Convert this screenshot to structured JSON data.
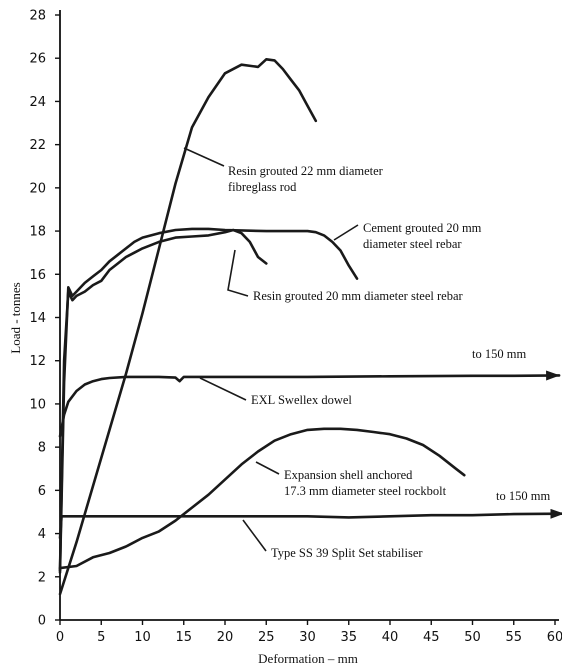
{
  "chart_data": {
    "type": "line",
    "xlabel": "Deformation – mm",
    "ylabel": "Load - tonnes",
    "xlim": [
      0,
      60
    ],
    "ylim": [
      0,
      28
    ],
    "xticks": [
      0,
      5,
      10,
      15,
      20,
      25,
      30,
      35,
      40,
      45,
      50,
      55,
      60
    ],
    "yticks": [
      0,
      2,
      4,
      6,
      8,
      10,
      12,
      14,
      16,
      18,
      20,
      22,
      24,
      26,
      28
    ],
    "grid": false,
    "series": [
      {
        "name": "Resin grouted 22 mm diameter fibreglass rod",
        "points": [
          [
            0,
            1.2
          ],
          [
            2,
            3.6
          ],
          [
            4,
            6.2
          ],
          [
            6,
            8.8
          ],
          [
            8,
            11.4
          ],
          [
            10,
            14.2
          ],
          [
            12,
            17.2
          ],
          [
            14,
            20.2
          ],
          [
            16,
            22.8
          ],
          [
            18,
            24.2
          ],
          [
            20,
            25.3
          ],
          [
            22,
            25.7
          ],
          [
            24,
            25.6
          ],
          [
            25,
            25.95
          ],
          [
            26,
            25.9
          ],
          [
            27,
            25.5
          ],
          [
            28,
            25
          ],
          [
            29,
            24.5
          ],
          [
            30,
            23.8
          ],
          [
            31,
            23.1
          ]
        ]
      },
      {
        "name": "Cement grouted 20 mm diameter steel rebar",
        "points": [
          [
            0,
            2.2
          ],
          [
            0.5,
            11
          ],
          [
            1,
            15.4
          ],
          [
            1.5,
            15
          ],
          [
            2,
            15.2
          ],
          [
            3,
            15.6
          ],
          [
            4,
            15.9
          ],
          [
            5,
            16.2
          ],
          [
            6,
            16.6
          ],
          [
            7,
            16.9
          ],
          [
            8,
            17.2
          ],
          [
            9,
            17.5
          ],
          [
            10,
            17.7
          ],
          [
            12,
            17.9
          ],
          [
            14,
            18.05
          ],
          [
            16,
            18.1
          ],
          [
            18,
            18.1
          ],
          [
            20,
            18.05
          ],
          [
            25,
            18.0
          ],
          [
            28,
            18.0
          ],
          [
            30,
            18.0
          ],
          [
            31,
            17.95
          ],
          [
            32,
            17.8
          ],
          [
            33,
            17.5
          ],
          [
            34,
            17.1
          ],
          [
            35,
            16.4
          ],
          [
            36,
            15.8
          ]
        ]
      },
      {
        "name": "Resin grouted 20 mm diameter steel rebar",
        "points": [
          [
            0,
            2.3
          ],
          [
            0.5,
            12
          ],
          [
            1,
            15.2
          ],
          [
            1.5,
            14.8
          ],
          [
            2,
            15.0
          ],
          [
            3,
            15.2
          ],
          [
            4,
            15.5
          ],
          [
            5,
            15.7
          ],
          [
            6,
            16.2
          ],
          [
            7,
            16.5
          ],
          [
            8,
            16.8
          ],
          [
            9,
            17
          ],
          [
            10,
            17.2
          ],
          [
            12,
            17.5
          ],
          [
            14,
            17.7
          ],
          [
            16,
            17.75
          ],
          [
            18,
            17.8
          ],
          [
            20,
            17.95
          ],
          [
            21,
            18.05
          ],
          [
            22,
            17.9
          ],
          [
            23,
            17.5
          ],
          [
            24,
            16.8
          ],
          [
            25,
            16.5
          ]
        ]
      },
      {
        "name": "EXL Swellex dowel",
        "points": [
          [
            0,
            8.5
          ],
          [
            0.5,
            9.5
          ],
          [
            1,
            10.1
          ],
          [
            2,
            10.6
          ],
          [
            3,
            10.9
          ],
          [
            4,
            11.05
          ],
          [
            5,
            11.15
          ],
          [
            6,
            11.2
          ],
          [
            8,
            11.25
          ],
          [
            10,
            11.25
          ],
          [
            12,
            11.25
          ],
          [
            14,
            11.22
          ],
          [
            14.5,
            11.05
          ],
          [
            15,
            11.25
          ],
          [
            20,
            11.25
          ],
          [
            30,
            11.25
          ],
          [
            40,
            11.28
          ],
          [
            50,
            11.3
          ],
          [
            55,
            11.3
          ],
          [
            60.5,
            11.32
          ]
        ]
      },
      {
        "name": "Expansion shell anchored 17.3 mm diameter steel rockbolt",
        "points": [
          [
            0,
            2.4
          ],
          [
            2,
            2.5
          ],
          [
            4,
            2.9
          ],
          [
            6,
            3.1
          ],
          [
            8,
            3.4
          ],
          [
            10,
            3.8
          ],
          [
            12,
            4.1
          ],
          [
            14,
            4.6
          ],
          [
            16,
            5.2
          ],
          [
            18,
            5.8
          ],
          [
            20,
            6.5
          ],
          [
            22,
            7.2
          ],
          [
            24,
            7.8
          ],
          [
            26,
            8.3
          ],
          [
            28,
            8.6
          ],
          [
            30,
            8.8
          ],
          [
            32,
            8.85
          ],
          [
            34,
            8.85
          ],
          [
            36,
            8.8
          ],
          [
            38,
            8.7
          ],
          [
            40,
            8.6
          ],
          [
            42,
            8.4
          ],
          [
            44,
            8.1
          ],
          [
            46,
            7.6
          ],
          [
            48,
            7.0
          ],
          [
            49,
            6.7
          ]
        ]
      },
      {
        "name": "Type SS 39 Split Set stabiliser",
        "points": [
          [
            0,
            3.8
          ],
          [
            0.2,
            4.8
          ],
          [
            5,
            4.8
          ],
          [
            10,
            4.8
          ],
          [
            15,
            4.8
          ],
          [
            20,
            4.8
          ],
          [
            25,
            4.8
          ],
          [
            30,
            4.8
          ],
          [
            35,
            4.75
          ],
          [
            40,
            4.8
          ],
          [
            45,
            4.85
          ],
          [
            50,
            4.85
          ],
          [
            55,
            4.9
          ],
          [
            61,
            4.92
          ]
        ]
      }
    ],
    "annotations": [
      {
        "lines": [
          "Resin grouted 22 mm diameter",
          "fibreglass rod"
        ]
      },
      {
        "lines": [
          "Cement grouted 20 mm",
          "diameter steel rebar"
        ]
      },
      {
        "lines": [
          "Resin grouted 20 mm diameter steel rebar"
        ]
      },
      {
        "lines": [
          "to 150 mm"
        ]
      },
      {
        "lines": [
          "EXL Swellex dowel"
        ]
      },
      {
        "lines": [
          "Expansion shell anchored",
          "17.3 mm diameter steel rockbolt"
        ]
      },
      {
        "lines": [
          "to 150 mm"
        ]
      },
      {
        "lines": [
          "Type SS 39 Split Set stabiliser"
        ]
      }
    ]
  }
}
